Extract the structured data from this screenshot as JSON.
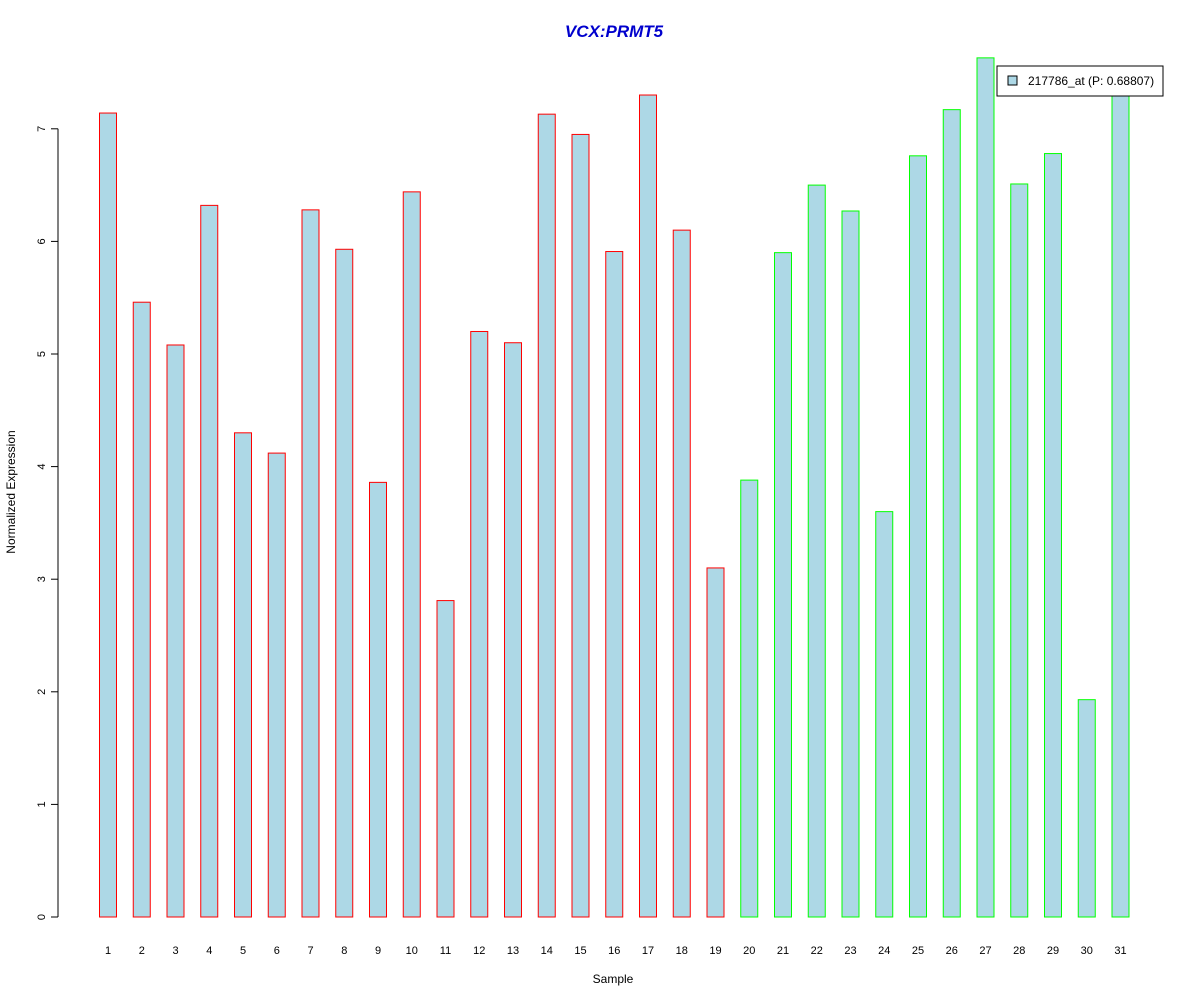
{
  "chart_data": {
    "type": "bar",
    "title": "VCX:PRMT5",
    "xlabel": "Sample",
    "ylabel": "Normalized Expression",
    "ylim": [
      0,
      7.7
    ],
    "yticks": [
      0,
      1,
      2,
      3,
      4,
      5,
      6,
      7
    ],
    "categories": [
      "1",
      "2",
      "3",
      "4",
      "5",
      "6",
      "7",
      "8",
      "9",
      "10",
      "11",
      "12",
      "13",
      "14",
      "15",
      "16",
      "17",
      "18",
      "19",
      "20",
      "21",
      "22",
      "23",
      "24",
      "25",
      "26",
      "27",
      "28",
      "29",
      "30",
      "31"
    ],
    "values": [
      7.14,
      5.46,
      5.08,
      6.32,
      4.3,
      4.12,
      6.28,
      5.93,
      3.86,
      6.44,
      2.81,
      5.2,
      5.1,
      7.13,
      6.95,
      5.91,
      7.3,
      6.1,
      3.1,
      3.88,
      5.9,
      6.5,
      6.27,
      3.6,
      6.76,
      7.17,
      7.63,
      6.51,
      6.78,
      1.93,
      7.33
    ],
    "groups": [
      "red",
      "red",
      "red",
      "red",
      "red",
      "red",
      "red",
      "red",
      "red",
      "red",
      "red",
      "red",
      "red",
      "red",
      "red",
      "red",
      "red",
      "red",
      "red",
      "green",
      "green",
      "green",
      "green",
      "green",
      "green",
      "green",
      "green",
      "green",
      "green",
      "green",
      "green"
    ],
    "colors": {
      "fill": "#add8e6",
      "group_red": "#ff0000",
      "group_green": "#00ff00",
      "title": "#0000cd"
    },
    "legend": {
      "position": "top-right",
      "label": "217786_at (P: 0.68807)"
    },
    "grid": false
  }
}
